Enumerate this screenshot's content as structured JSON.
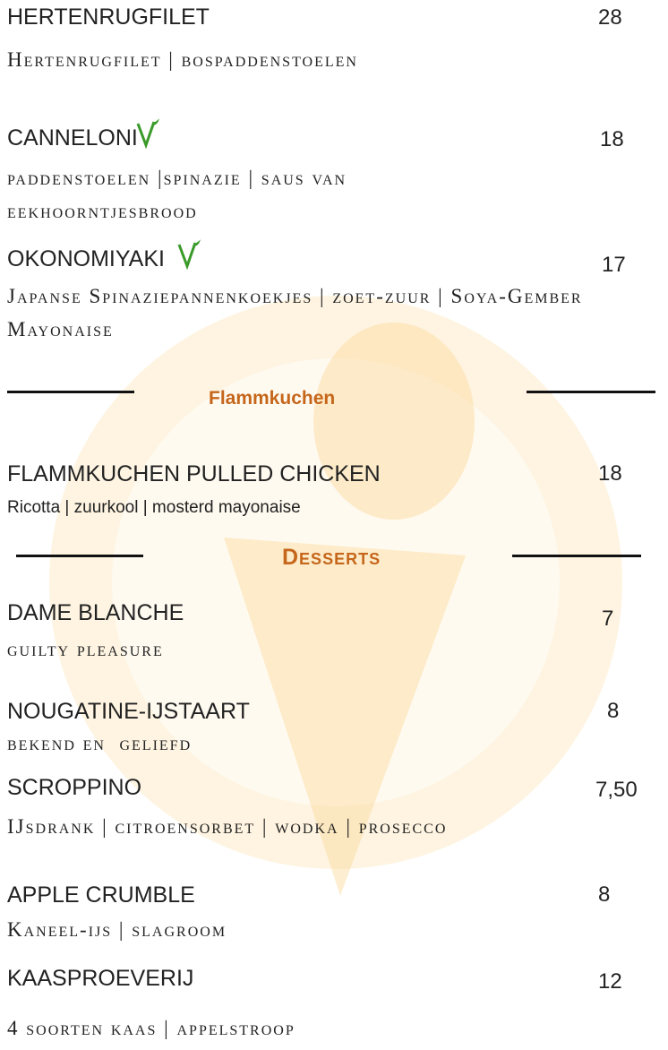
{
  "items": [
    {
      "name": "HERTENRUGFILET",
      "price": "28",
      "description": "Hertenrugfilet | bospaddenstoelen"
    },
    {
      "name": "CANNELONI",
      "price": "18",
      "description": "paddenstoelen |spinazie | saus van eekhoorntjesbrood"
    },
    {
      "name": "OKONOMIYAKI",
      "price": "17",
      "description": "Japanse Spinaziepannenkoekjes | zoet-zuur | Soya-Gember Mayonaise"
    },
    {
      "name": "FLAMMKUCHEN PULLED CHICKEN",
      "price": "18",
      "description": "Ricotta | zuurkool | mosterd mayonaise"
    },
    {
      "name": "DAME BLANCHE",
      "price": "7",
      "description": "guilty pleasure"
    },
    {
      "name": "NOUGATINE-IJSTAART",
      "price": "8",
      "description": "bekend en  geliefd"
    },
    {
      "name": "SCROPPINO",
      "price": "7,50",
      "description": "IJsdrank | citroensorbet | wodka | prosecco"
    },
    {
      "name": "APPLE CRUMBLE",
      "price": "8",
      "description": "Kaneel-ijs | slagroom"
    },
    {
      "name": "KAASPROEVERIJ",
      "price": "12",
      "description": "4 soorten kaas | appelstroop"
    }
  ],
  "sections": [
    {
      "title": "Flammkuchen"
    },
    {
      "title": "Desserts"
    }
  ]
}
